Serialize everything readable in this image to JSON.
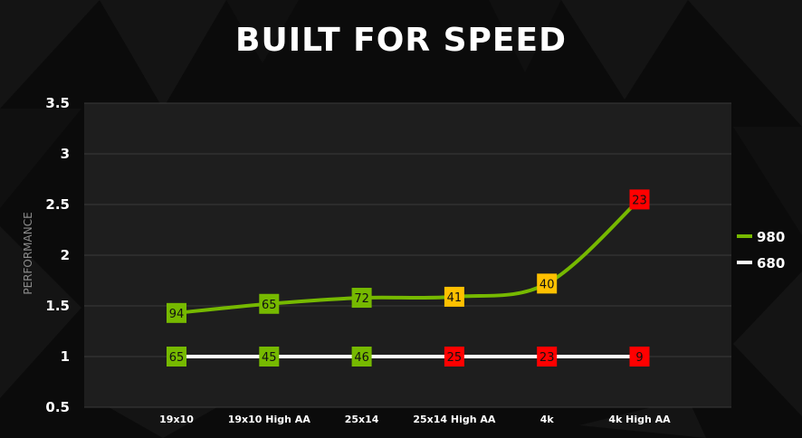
{
  "title": "BUILT FOR SPEED",
  "colors": {
    "background": "#0b0b0b",
    "plot_background": "#1e1e1e",
    "series_980": "#76b900",
    "series_680": "#ffffff",
    "marker_good": "#76b900",
    "marker_mid": "#ffc000",
    "marker_bad": "#ff0000"
  },
  "chart_data": {
    "type": "line",
    "ylabel": "PERFORMANCE",
    "xlabel": "",
    "ylim": [
      0.5,
      3.5
    ],
    "yticks": [
      "0.5",
      "1",
      "1.5",
      "2",
      "2.5",
      "3",
      "3.5"
    ],
    "grid": true,
    "legend_position": "right",
    "categories": [
      "19x10",
      "19x10 High AA",
      "25x14",
      "25x14 High AA",
      "4k",
      "4k High AA"
    ],
    "series": [
      {
        "name": "980",
        "color": "#76b900",
        "values": [
          1.43,
          1.52,
          1.58,
          1.59,
          1.72,
          2.55
        ],
        "labels": [
          "94",
          "65",
          "72",
          "41",
          "40",
          "23"
        ],
        "marker_colors": [
          "#76b900",
          "#76b900",
          "#76b900",
          "#ffc000",
          "#ffc000",
          "#ff0000"
        ]
      },
      {
        "name": "680",
        "color": "#ffffff",
        "values": [
          1,
          1,
          1,
          1,
          1,
          1
        ],
        "labels": [
          "65",
          "45",
          "46",
          "25",
          "23",
          "9"
        ],
        "marker_colors": [
          "#76b900",
          "#76b900",
          "#76b900",
          "#ff0000",
          "#ff0000",
          "#ff0000"
        ]
      }
    ]
  }
}
